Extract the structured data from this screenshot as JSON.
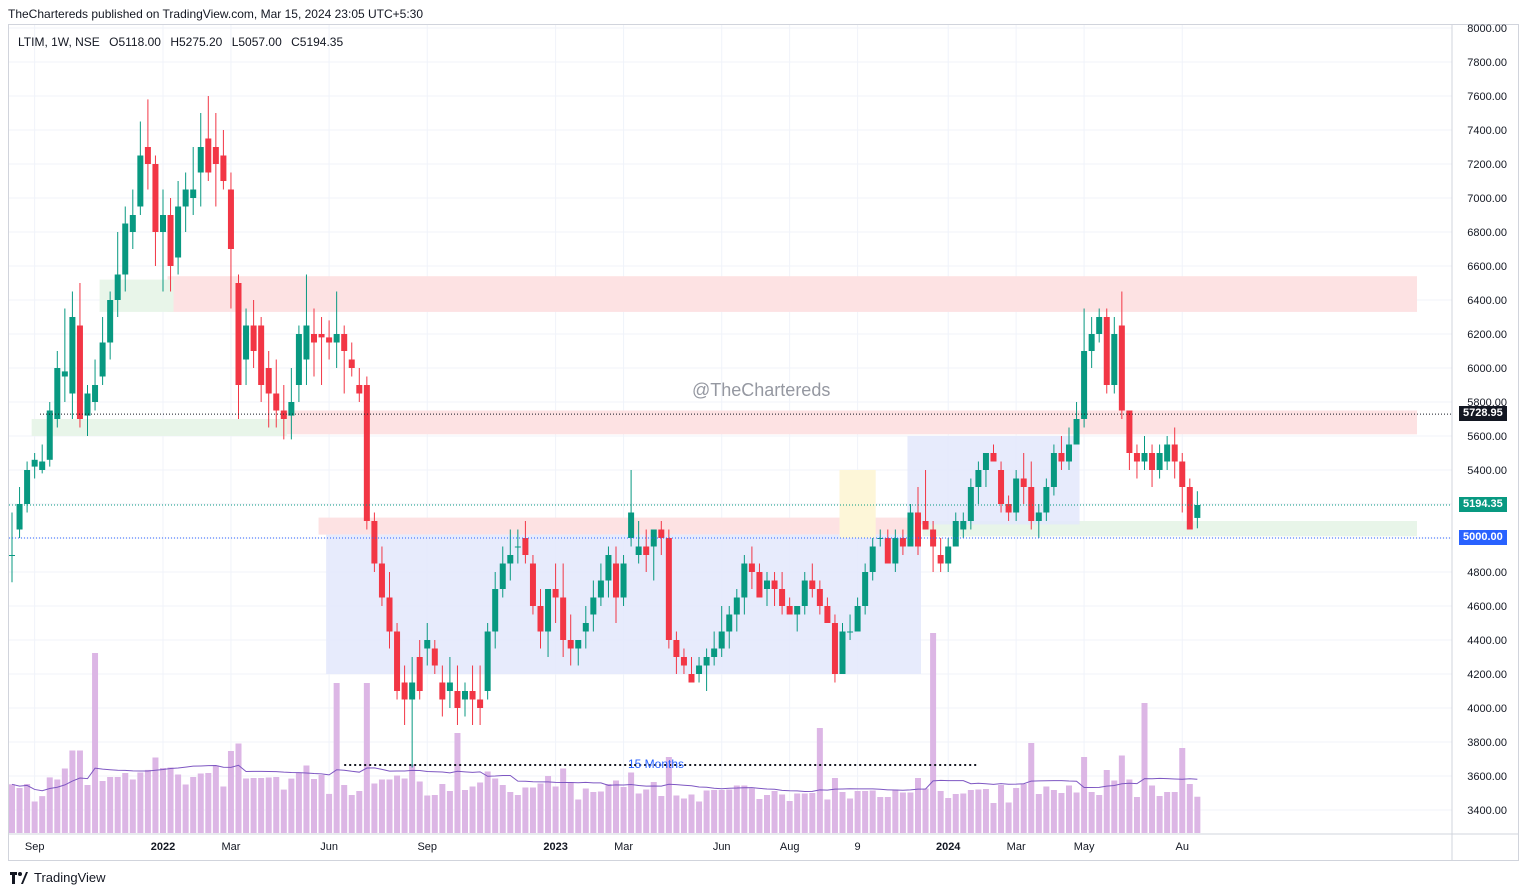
{
  "header": {
    "published_text": "TheChartereds published on TradingView.com, Mar 15, 2024 23:05 UTC+5:30"
  },
  "legend": {
    "symbol": "LTIM, 1W, NSE",
    "open": "O5118.00",
    "high": "H5275.20",
    "low": "L5057.00",
    "close": "C5194.35"
  },
  "watermark": "@TheChartereds",
  "annotation": {
    "text": "15 Months"
  },
  "price_tags": [
    {
      "label": "5728.95",
      "value": 5728.95,
      "color": "#131722"
    },
    {
      "label": "5194.35",
      "value": 5194.35,
      "color": "#089981"
    },
    {
      "label": "5000.00",
      "value": 5000.0,
      "color": "#2962ff"
    }
  ],
  "footer": {
    "brand": "TradingView"
  },
  "colors": {
    "up": "#089981",
    "down": "#f23645",
    "volume": "#dcb6e5",
    "volume_ma": "#7e57c2",
    "resistance_zone": "#fde2e3",
    "support_zone": "#e8f5e9",
    "range_box": "#e3e8fb",
    "highlight": "#fdf6d8"
  },
  "chart_data": {
    "type": "candlestick",
    "symbol": "LTIM",
    "interval": "1W",
    "exchange": "NSE",
    "ylim": [
      3300,
      8000
    ],
    "y_ticks": [
      "3400.00",
      "3600.00",
      "3800.00",
      "4000.00",
      "4200.00",
      "4400.00",
      "4600.00",
      "4800.00",
      "5000.00",
      "5200.00",
      "5400.00",
      "5600.00",
      "5800.00",
      "6000.00",
      "6200.00",
      "6400.00",
      "6600.00",
      "6800.00",
      "7000.00",
      "7200.00",
      "7400.00",
      "7600.00",
      "7800.00",
      "8000.00"
    ],
    "x_ticks": [
      {
        "label": "Sep",
        "bar": 3
      },
      {
        "label": "2022",
        "bar": 20
      },
      {
        "label": "Mar",
        "bar": 29
      },
      {
        "label": "Jun",
        "bar": 42
      },
      {
        "label": "Sep",
        "bar": 55
      },
      {
        "label": "2023",
        "bar": 72
      },
      {
        "label": "Mar",
        "bar": 81
      },
      {
        "label": "Jun",
        "bar": 94
      },
      {
        "label": "Aug",
        "bar": 103
      },
      {
        "label": "9",
        "bar": 112
      },
      {
        "label": "2024",
        "bar": 124
      },
      {
        "label": "Mar",
        "bar": 133
      },
      {
        "label": "May",
        "bar": 142
      },
      {
        "label": "Au",
        "bar": 155
      }
    ],
    "ohlc": [
      [
        4900,
        5150,
        4740,
        4900
      ],
      [
        5050,
        5300,
        5000,
        5200
      ],
      [
        5200,
        5450,
        5150,
        5400
      ],
      [
        5420,
        5500,
        5350,
        5460
      ],
      [
        5400,
        5550,
        5380,
        5450
      ],
      [
        5460,
        5800,
        5420,
        5750
      ],
      [
        5700,
        6100,
        5650,
        6000
      ],
      [
        5950,
        6350,
        5800,
        5980
      ],
      [
        5850,
        6450,
        5700,
        6300
      ],
      [
        6250,
        6500,
        5650,
        5700
      ],
      [
        5720,
        5900,
        5600,
        5850
      ],
      [
        5800,
        6050,
        5750,
        5900
      ],
      [
        5950,
        6300,
        5900,
        6150
      ],
      [
        6150,
        6450,
        6050,
        6400
      ],
      [
        6400,
        6800,
        6300,
        6550
      ],
      [
        6550,
        6950,
        6450,
        6850
      ],
      [
        6800,
        7050,
        6700,
        6900
      ],
      [
        6950,
        7450,
        6900,
        7250
      ],
      [
        7300,
        7580,
        7050,
        7200
      ],
      [
        7200,
        7250,
        6600,
        6800
      ],
      [
        6800,
        7050,
        6450,
        6900
      ],
      [
        6900,
        7000,
        6450,
        6600
      ],
      [
        6650,
        7100,
        6550,
        6950
      ],
      [
        6950,
        7150,
        6800,
        7050
      ],
      [
        7000,
        7300,
        6900,
        7050
      ],
      [
        7150,
        7500,
        6950,
        7300
      ],
      [
        7350,
        7600,
        7100,
        7150
      ],
      [
        7300,
        7500,
        6950,
        7200
      ],
      [
        7250,
        7400,
        7050,
        7100
      ],
      [
        7050,
        7150,
        6350,
        6700
      ],
      [
        6500,
        6550,
        5700,
        5900
      ],
      [
        6050,
        6350,
        5900,
        6250
      ],
      [
        6250,
        6400,
        6000,
        6100
      ],
      [
        6250,
        6300,
        5800,
        5900
      ],
      [
        6000,
        6100,
        5650,
        5850
      ],
      [
        5850,
        6050,
        5650,
        5750
      ],
      [
        5750,
        5900,
        5580,
        5700
      ],
      [
        5720,
        6000,
        5580,
        5800
      ],
      [
        5900,
        6250,
        5800,
        6200
      ],
      [
        6050,
        6550,
        5900,
        6250
      ],
      [
        6200,
        6350,
        5950,
        6150
      ],
      [
        6200,
        6300,
        5900,
        6180
      ],
      [
        6180,
        6280,
        6050,
        6150
      ],
      [
        6150,
        6450,
        6000,
        6200
      ],
      [
        6200,
        6250,
        5850,
        6100
      ],
      [
        6050,
        6150,
        5950,
        6000
      ],
      [
        5900,
        6000,
        5800,
        5850
      ],
      [
        5900,
        5950,
        5050,
        5100
      ],
      [
        5100,
        5150,
        4800,
        4850
      ],
      [
        4850,
        4950,
        4600,
        4650
      ],
      [
        4650,
        4800,
        4350,
        4450
      ],
      [
        4450,
        4500,
        4050,
        4100
      ],
      [
        4150,
        4250,
        3900,
        4050
      ],
      [
        4050,
        4300,
        3650,
        4150
      ],
      [
        4300,
        4400,
        4050,
        4100
      ],
      [
        4350,
        4500,
        4250,
        4400
      ],
      [
        4350,
        4400,
        4200,
        4250
      ],
      [
        4150,
        4250,
        3950,
        4050
      ],
      [
        4100,
        4300,
        4000,
        4150
      ],
      [
        4100,
        4250,
        3900,
        4000
      ],
      [
        4050,
        4150,
        3950,
        4100
      ],
      [
        4100,
        4250,
        3900,
        4050
      ],
      [
        4050,
        4250,
        3900,
        4000
      ],
      [
        4100,
        4500,
        4050,
        4450
      ],
      [
        4450,
        4800,
        4350,
        4700
      ],
      [
        4700,
        4950,
        4650,
        4850
      ],
      [
        4850,
        5050,
        4750,
        4900
      ],
      [
        4950,
        5050,
        4850,
        4950
      ],
      [
        5000,
        5100,
        4850,
        4900
      ],
      [
        4850,
        4900,
        4550,
        4600
      ],
      [
        4600,
        4700,
        4350,
        4450
      ],
      [
        4450,
        4700,
        4300,
        4700
      ],
      [
        4700,
        4850,
        4500,
        4650
      ],
      [
        4650,
        4850,
        4300,
        4400
      ],
      [
        4400,
        4550,
        4250,
        4350
      ],
      [
        4350,
        4400,
        4250,
        4400
      ],
      [
        4450,
        4600,
        4350,
        4500
      ],
      [
        4550,
        4750,
        4450,
        4650
      ],
      [
        4650,
        4850,
        4600,
        4750
      ],
      [
        4750,
        4950,
        4650,
        4900
      ],
      [
        4850,
        4950,
        4500,
        4650
      ],
      [
        4650,
        4900,
        4600,
        4850
      ],
      [
        5000,
        5400,
        4950,
        5150
      ],
      [
        4900,
        5100,
        4850,
        4950
      ],
      [
        4950,
        5050,
        4800,
        4900
      ],
      [
        4950,
        5050,
        4750,
        5050
      ],
      [
        5050,
        5100,
        4900,
        5000
      ],
      [
        5000,
        5050,
        4350,
        4400
      ],
      [
        4400,
        4450,
        4200,
        4300
      ],
      [
        4300,
        4350,
        4200,
        4250
      ],
      [
        4200,
        4300,
        4150,
        4150
      ],
      [
        4200,
        4300,
        4150,
        4250
      ],
      [
        4250,
        4350,
        4100,
        4300
      ],
      [
        4300,
        4450,
        4250,
        4350
      ],
      [
        4350,
        4600,
        4300,
        4450
      ],
      [
        4450,
        4600,
        4350,
        4550
      ],
      [
        4550,
        4700,
        4450,
        4650
      ],
      [
        4650,
        4900,
        4550,
        4850
      ],
      [
        4850,
        4950,
        4700,
        4800
      ],
      [
        4800,
        4850,
        4650,
        4650
      ],
      [
        4700,
        4800,
        4600,
        4750
      ],
      [
        4750,
        4800,
        4600,
        4700
      ],
      [
        4700,
        4800,
        4550,
        4600
      ],
      [
        4600,
        4650,
        4550,
        4550
      ],
      [
        4550,
        4600,
        4450,
        4600
      ],
      [
        4600,
        4800,
        4550,
        4750
      ],
      [
        4750,
        4850,
        4650,
        4700
      ],
      [
        4700,
        4750,
        4550,
        4600
      ],
      [
        4600,
        4650,
        4500,
        4500
      ],
      [
        4500,
        4550,
        4150,
        4200
      ],
      [
        4200,
        4500,
        4200,
        4450
      ],
      [
        4450,
        4550,
        4400,
        4450
      ],
      [
        4450,
        4650,
        4450,
        4600
      ],
      [
        4600,
        4850,
        4550,
        4800
      ],
      [
        4800,
        5000,
        4750,
        4950
      ],
      [
        5000,
        5050,
        4950,
        5000
      ],
      [
        5000,
        5050,
        4850,
        4850
      ],
      [
        4850,
        5050,
        4800,
        5000
      ],
      [
        5000,
        5050,
        4900,
        4950
      ],
      [
        4950,
        5200,
        4950,
        5150
      ],
      [
        5150,
        5300,
        4900,
        4950
      ],
      [
        5100,
        5400,
        5050,
        5050
      ],
      [
        5050,
        5100,
        4800,
        4950
      ],
      [
        4900,
        5000,
        4800,
        4850
      ],
      [
        4850,
        5000,
        4800,
        4950
      ],
      [
        4950,
        5150,
        4950,
        5100
      ],
      [
        5050,
        5150,
        5000,
        5100
      ],
      [
        5100,
        5350,
        5050,
        5300
      ],
      [
        5300,
        5450,
        5200,
        5400
      ],
      [
        5400,
        5500,
        5300,
        5500
      ],
      [
        5500,
        5550,
        5450,
        5450
      ],
      [
        5400,
        5450,
        5150,
        5200
      ],
      [
        5200,
        5250,
        5100,
        5150
      ],
      [
        5150,
        5400,
        5100,
        5350
      ],
      [
        5350,
        5500,
        5200,
        5300
      ],
      [
        5300,
        5450,
        5050,
        5100
      ],
      [
        5100,
        5200,
        5000,
        5150
      ],
      [
        5150,
        5350,
        5100,
        5300
      ],
      [
        5300,
        5550,
        5250,
        5500
      ],
      [
        5500,
        5600,
        5400,
        5450
      ],
      [
        5450,
        5650,
        5400,
        5550
      ],
      [
        5550,
        5800,
        5550,
        5700
      ],
      [
        5700,
        6350,
        5650,
        6100
      ],
      [
        6100,
        6300,
        6000,
        6200
      ],
      [
        6200,
        6350,
        6150,
        6300
      ],
      [
        6300,
        6350,
        5850,
        5900
      ],
      [
        5900,
        6300,
        5850,
        6200
      ],
      [
        6250,
        6450,
        5700,
        5750
      ],
      [
        5750,
        5750,
        5400,
        5500
      ],
      [
        5500,
        5550,
        5350,
        5450
      ],
      [
        5450,
        5600,
        5400,
        5500
      ],
      [
        5500,
        5550,
        5300,
        5400
      ],
      [
        5400,
        5550,
        5350,
        5500
      ],
      [
        5450,
        5600,
        5400,
        5550
      ],
      [
        5550,
        5650,
        5350,
        5450
      ],
      [
        5450,
        5500,
        5150,
        5300
      ],
      [
        5300,
        5350,
        5050,
        5050
      ],
      [
        5118,
        5275.2,
        5057,
        5194.35
      ]
    ],
    "volume_ma_style": "line",
    "zones": [
      {
        "type": "resistance",
        "from_bar": 21,
        "to_bar": 164,
        "low": 6330,
        "high": 6540
      },
      {
        "type": "resistance",
        "from_bar": 36,
        "to_bar": 164,
        "low": 5610,
        "high": 5750
      },
      {
        "type": "resistance",
        "from_bar": 41,
        "to_bar": 120,
        "low": 5020,
        "high": 5120
      },
      {
        "type": "support",
        "from_bar": 12,
        "to_bar": 21,
        "low": 6330,
        "high": 6520
      },
      {
        "type": "support",
        "from_bar": 3,
        "to_bar": 36,
        "low": 5600,
        "high": 5700
      },
      {
        "type": "support",
        "from_bar": 121,
        "to_bar": 164,
        "low": 5010,
        "high": 5100
      },
      {
        "type": "range",
        "from_bar": 42,
        "to_bar": 120,
        "low": 4200,
        "high": 5020
      },
      {
        "type": "range",
        "from_bar": 119,
        "to_bar": 141,
        "low": 5080,
        "high": 5600
      },
      {
        "type": "highlight",
        "from_bar": 110,
        "to_bar": 114,
        "low": 5000,
        "high": 5400
      }
    ]
  }
}
